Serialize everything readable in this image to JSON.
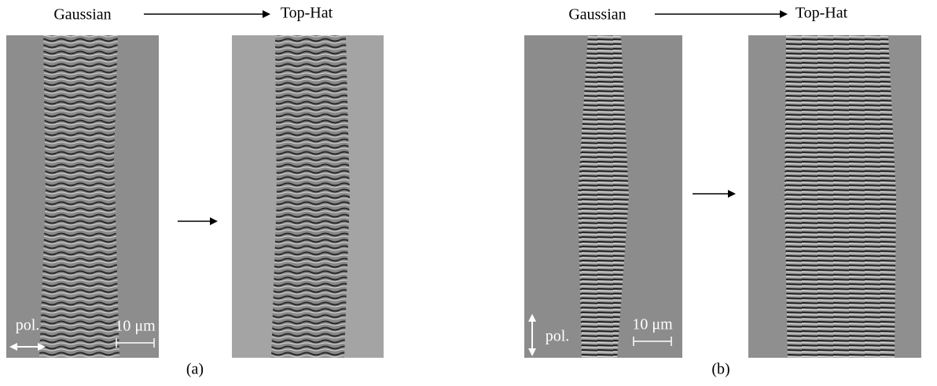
{
  "panels": [
    {
      "from_label": "Gaussian",
      "to_label": "Top-Hat",
      "polarization_label": "pol.",
      "scale_label": "10 μm",
      "caption": "(a)"
    },
    {
      "from_label": "Gaussian",
      "to_label": "Top-Hat",
      "polarization_label": "pol.",
      "scale_label": "10 μm",
      "caption": "(b)"
    }
  ]
}
